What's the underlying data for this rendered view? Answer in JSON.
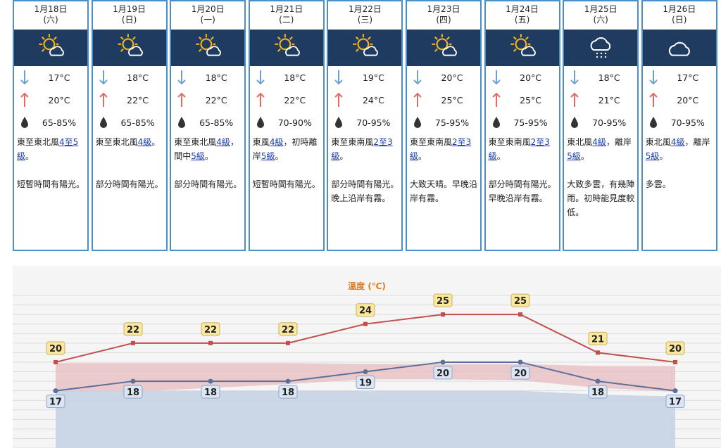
{
  "forecast": [
    {
      "date": "1月18日",
      "weekday": "(六)",
      "icon": "sun-cloud-icon",
      "min": "17°C",
      "max": "20°C",
      "humidity": "65-85%",
      "wind": [
        {
          "t": "東至東北風"
        },
        {
          "t": "4至5級",
          "link": true
        },
        {
          "t": "。"
        }
      ],
      "desc": "短暫時間有陽光。"
    },
    {
      "date": "1月19日",
      "weekday": "(日)",
      "icon": "sun-cloud-icon",
      "min": "18°C",
      "max": "22°C",
      "humidity": "65-85%",
      "wind": [
        {
          "t": "東至東北風"
        },
        {
          "t": "4級",
          "link": true
        },
        {
          "t": "。"
        }
      ],
      "desc": "部分時間有陽光。"
    },
    {
      "date": "1月20日",
      "weekday": "(一)",
      "icon": "sun-cloud-icon",
      "min": "18°C",
      "max": "22°C",
      "humidity": "65-85%",
      "wind": [
        {
          "t": "東至東北風"
        },
        {
          "t": "4級",
          "link": true
        },
        {
          "t": "，間中"
        },
        {
          "t": "5級",
          "link": true
        },
        {
          "t": "。"
        }
      ],
      "desc": "部分時間有陽光。"
    },
    {
      "date": "1月21日",
      "weekday": "(二)",
      "icon": "sun-cloud-icon",
      "min": "18°C",
      "max": "22°C",
      "humidity": "70-90%",
      "wind": [
        {
          "t": "東風"
        },
        {
          "t": "4級",
          "link": true
        },
        {
          "t": "，初時離岸"
        },
        {
          "t": "5級",
          "link": true
        },
        {
          "t": "。"
        }
      ],
      "desc": "短暫時間有陽光。"
    },
    {
      "date": "1月22日",
      "weekday": "(三)",
      "icon": "sun-cloud-icon",
      "min": "19°C",
      "max": "24°C",
      "humidity": "70-95%",
      "wind": [
        {
          "t": "東至東南風"
        },
        {
          "t": "2至3級",
          "link": true
        },
        {
          "t": "。"
        }
      ],
      "desc": "部分時間有陽光。晚上沿岸有霧。"
    },
    {
      "date": "1月23日",
      "weekday": "(四)",
      "icon": "sun-cloud-icon",
      "min": "20°C",
      "max": "25°C",
      "humidity": "75-95%",
      "wind": [
        {
          "t": "東至東南風"
        },
        {
          "t": "2至3級",
          "link": true
        },
        {
          "t": "。"
        }
      ],
      "desc": "大致天晴。早晚沿岸有霧。"
    },
    {
      "date": "1月24日",
      "weekday": "(五)",
      "icon": "sun-cloud-icon",
      "min": "20°C",
      "max": "25°C",
      "humidity": "75-95%",
      "wind": [
        {
          "t": "東至東南風"
        },
        {
          "t": "2至3級",
          "link": true
        },
        {
          "t": "。"
        }
      ],
      "desc": "部分時間有陽光。早晚沿岸有霧。"
    },
    {
      "date": "1月25日",
      "weekday": "(六)",
      "icon": "cloud-rain-icon",
      "min": "18°C",
      "max": "21°C",
      "humidity": "70-95%",
      "wind": [
        {
          "t": "東北風"
        },
        {
          "t": "4級",
          "link": true
        },
        {
          "t": "，離岸"
        },
        {
          "t": "5級",
          "link": true
        },
        {
          "t": "。"
        }
      ],
      "desc": "大致多雲，有幾陣雨。初時能見度較低。"
    },
    {
      "date": "1月26日",
      "weekday": "(日)",
      "icon": "cloud-icon",
      "min": "17°C",
      "max": "20°C",
      "humidity": "70-95%",
      "wind": [
        {
          "t": "東北風"
        },
        {
          "t": "4級",
          "link": true
        },
        {
          "t": "，離岸"
        },
        {
          "t": "5級",
          "link": true
        },
        {
          "t": "。"
        }
      ],
      "desc": "多雲。"
    }
  ],
  "colors": {
    "card_border": "#4a8fc8",
    "icon_bar": "#1f3b5f",
    "max_line": "#c0504d",
    "min_line": "#5b6f9a",
    "title": "#e07a20",
    "label_fill": "#fbe8a0",
    "min_label_fill": "#dbe5f3"
  },
  "chart_data": {
    "type": "line",
    "title": "溫度 (℃)",
    "categories": [
      "1月18日",
      "1月19日",
      "1月20日",
      "1月21日",
      "1月22日",
      "1月23日",
      "1月24日",
      "1月25日",
      "1月26日"
    ],
    "series": [
      {
        "values": [
          20,
          22,
          22,
          22,
          24,
          25,
          25,
          21,
          20
        ]
      },
      {
        "values": [
          17,
          18,
          18,
          18,
          19,
          20,
          20,
          18,
          17
        ]
      }
    ],
    "ylim": [
      11,
      27
    ],
    "grid": true
  }
}
